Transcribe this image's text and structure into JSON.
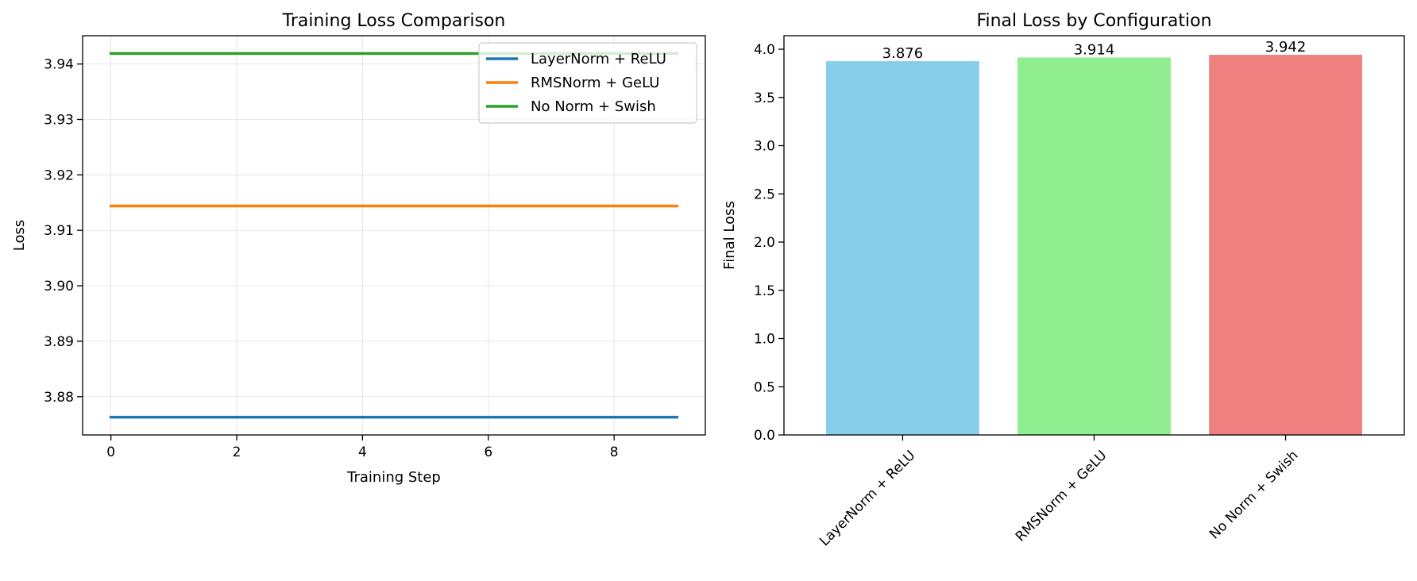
{
  "chart_data": [
    {
      "type": "line",
      "title": "Training Loss Comparison",
      "xlabel": "Training Step",
      "ylabel": "Loss",
      "xlim": [
        -0.45,
        9.45
      ],
      "ylim": [
        3.8731,
        3.9451
      ],
      "x_ticks": [
        0,
        2,
        4,
        6,
        8
      ],
      "y_ticks": [
        3.88,
        3.89,
        3.9,
        3.91,
        3.92,
        3.93,
        3.94
      ],
      "y_tick_labels": [
        "3.88",
        "3.89",
        "3.90",
        "3.91",
        "3.92",
        "3.93",
        "3.94"
      ],
      "grid": true,
      "legend_position": "top-right",
      "x": [
        0,
        1,
        2,
        3,
        4,
        5,
        6,
        7,
        8,
        9
      ],
      "series": [
        {
          "name": "LayerNorm + ReLU",
          "color": "#1f77b4",
          "values": [
            3.8763,
            3.8763,
            3.8763,
            3.8763,
            3.8763,
            3.8763,
            3.8763,
            3.8763,
            3.8763,
            3.8763
          ]
        },
        {
          "name": "RMSNorm + GeLU",
          "color": "#ff7f0e",
          "values": [
            3.9144,
            3.9144,
            3.9144,
            3.9144,
            3.9144,
            3.9144,
            3.9144,
            3.9144,
            3.9144,
            3.9144
          ]
        },
        {
          "name": "No Norm + Swish",
          "color": "#2ca02c",
          "values": [
            3.9419,
            3.9419,
            3.9419,
            3.9419,
            3.9419,
            3.9419,
            3.9419,
            3.9419,
            3.9419,
            3.9419
          ]
        }
      ]
    },
    {
      "type": "bar",
      "title": "Final Loss by Configuration",
      "xlabel": "",
      "ylabel": "Final Loss",
      "ylim": [
        0,
        4.14
      ],
      "y_ticks": [
        0,
        0.5,
        1.0,
        1.5,
        2.0,
        2.5,
        3.0,
        3.5,
        4.0
      ],
      "y_tick_labels": [
        "0.0",
        "0.5",
        "1.0",
        "1.5",
        "2.0",
        "2.5",
        "3.0",
        "3.5",
        "4.0"
      ],
      "grid": false,
      "categories": [
        "LayerNorm + ReLU",
        "RMSNorm + GeLU",
        "No Norm + Swish"
      ],
      "values": [
        3.876,
        3.914,
        3.942
      ],
      "data_labels": [
        "3.876",
        "3.914",
        "3.942"
      ],
      "colors": [
        "#87ceeb",
        "#90ee90",
        "#f08080"
      ]
    }
  ]
}
